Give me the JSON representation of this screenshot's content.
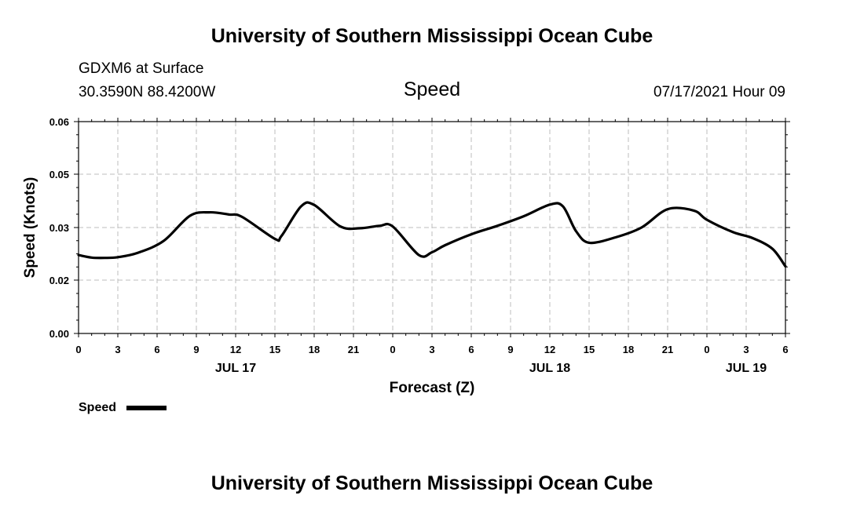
{
  "header_title": "University of Southern Mississippi Ocean Cube",
  "footer_title": "University of Southern Mississippi Ocean Cube",
  "station_line": "GDXM6 at Surface",
  "coords_line": "30.3590N  88.4200W",
  "datetime_line": "07/17/2021 Hour 09",
  "chart_data": {
    "type": "line",
    "title": "Speed",
    "xlabel": "Forecast (Z)",
    "ylabel": "Speed (Knots)",
    "ylim": [
      0.0,
      0.06
    ],
    "y_ticks": [
      "0.06",
      "0.05",
      "0.03",
      "0.02",
      "0.00"
    ],
    "x_range_hours": [
      0,
      54
    ],
    "x_tick_labels": [
      "0",
      "3",
      "6",
      "9",
      "12",
      "15",
      "18",
      "21",
      "0",
      "3",
      "6",
      "9",
      "12",
      "15",
      "18",
      "21",
      "0",
      "3",
      "6"
    ],
    "date_labels": [
      {
        "text": "JUL 17",
        "hour": 12
      },
      {
        "text": "JUL 18",
        "hour": 36
      },
      {
        "text": "JUL 19",
        "hour": 51
      }
    ],
    "grid": true,
    "legend": "bottom-left",
    "series": [
      {
        "name": "Speed",
        "color": "#000000",
        "x": [
          0,
          1,
          2,
          3,
          4.5,
          6.5,
          8.5,
          10,
          11.5,
          12.5,
          15,
          15.5,
          17,
          18,
          20,
          21.5,
          23,
          24,
          26,
          27,
          28,
          30,
          32,
          34,
          36,
          37,
          38,
          39,
          41,
          43,
          45,
          47,
          48,
          50,
          51.5,
          53,
          54
        ],
        "y": [
          0.0222,
          0.0215,
          0.0214,
          0.0216,
          0.0228,
          0.0262,
          0.0333,
          0.0343,
          0.0337,
          0.033,
          0.0268,
          0.0276,
          0.036,
          0.0364,
          0.0303,
          0.0298,
          0.0305,
          0.0303,
          0.0222,
          0.023,
          0.025,
          0.0281,
          0.0305,
          0.0332,
          0.0365,
          0.036,
          0.029,
          0.0257,
          0.0272,
          0.03,
          0.0352,
          0.0348,
          0.0322,
          0.0287,
          0.027,
          0.024,
          0.019
        ]
      }
    ]
  }
}
